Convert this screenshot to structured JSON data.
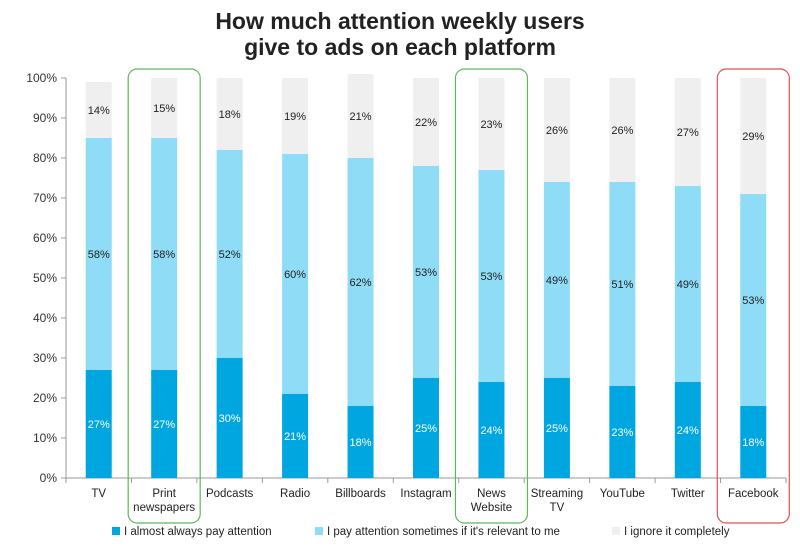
{
  "chart_data": {
    "type": "bar",
    "stacked": true,
    "title_lines": [
      "How much attention weekly users",
      "give to ads on each platform"
    ],
    "categories": [
      [
        "TV"
      ],
      [
        "Print",
        "newspapers"
      ],
      [
        "Podcasts"
      ],
      [
        "Radio"
      ],
      [
        "Billboards"
      ],
      [
        "Instagram"
      ],
      [
        "News",
        "Website"
      ],
      [
        "Streaming",
        "TV"
      ],
      [
        "YouTube"
      ],
      [
        "Twitter"
      ],
      [
        "Facebook"
      ]
    ],
    "series": [
      {
        "name": "I almost always pay attention",
        "color": "#00a6e0",
        "label_color": "#ffffff",
        "values": [
          27,
          27,
          30,
          21,
          18,
          25,
          24,
          25,
          23,
          24,
          18
        ],
        "labels": [
          "27%",
          "27%",
          "30%",
          "21%",
          "18%",
          "25%",
          "24%",
          "25%",
          "23%",
          "24%",
          "18%"
        ]
      },
      {
        "name": "I pay attention sometimes if it's relevant to me",
        "color": "#8fdcf7",
        "label_color": "#222222",
        "values": [
          58,
          58,
          52,
          60,
          62,
          53,
          53,
          49,
          51,
          49,
          53
        ],
        "labels": [
          "58%",
          "58%",
          "52%",
          "60%",
          "62%",
          "53%",
          "53%",
          "49%",
          "51%",
          "49%",
          "53%"
        ]
      },
      {
        "name": "I ignore it completely",
        "color": "#efefef",
        "label_color": "#222222",
        "values": [
          14,
          15,
          18,
          19,
          21,
          22,
          23,
          26,
          26,
          27,
          29
        ],
        "labels": [
          "14%",
          "15%",
          "18%",
          "19%",
          "21%",
          "22%",
          "23%",
          "26%",
          "26%",
          "27%",
          "29%"
        ]
      }
    ],
    "ylim": [
      0,
      100
    ],
    "yticks": [
      "0%",
      "10%",
      "20%",
      "30%",
      "40%",
      "50%",
      "60%",
      "70%",
      "80%",
      "90%",
      "100%"
    ],
    "xlabel": "",
    "ylabel": "",
    "grid": false,
    "legend_position": "bottom",
    "highlights": [
      {
        "category_index": 1,
        "color": "#5cb85c"
      },
      {
        "category_index": 6,
        "color": "#5cb85c"
      },
      {
        "category_index": 10,
        "color": "#e05050"
      }
    ]
  }
}
